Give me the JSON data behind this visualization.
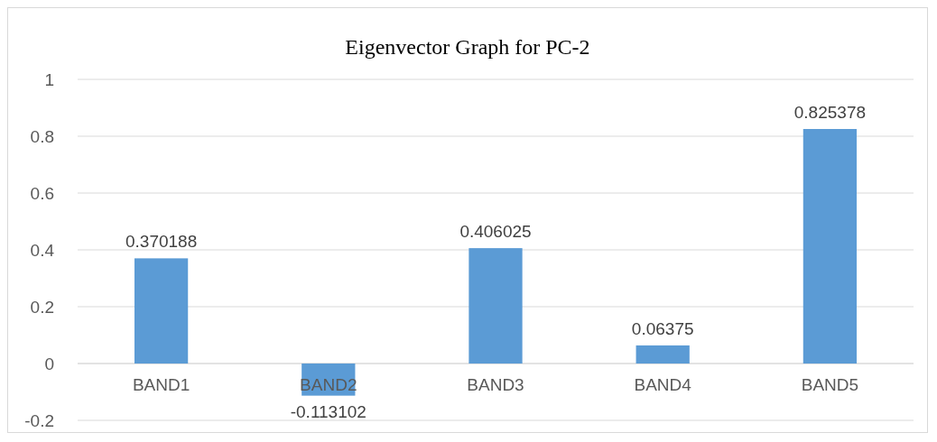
{
  "chart_data": {
    "type": "bar",
    "title": "Eigenvector Graph for PC-2",
    "categories": [
      "BAND1",
      "BAND2",
      "BAND3",
      "BAND4",
      "BAND5"
    ],
    "values": [
      0.370188,
      -0.113102,
      0.406025,
      0.06375,
      0.825378
    ],
    "color": "#5b9bd5",
    "ylim": [
      -0.2,
      1
    ],
    "yticks": [
      -0.2,
      0,
      0.2,
      0.4,
      0.6,
      0.8,
      1
    ],
    "grid": "y",
    "data_labels": true
  }
}
